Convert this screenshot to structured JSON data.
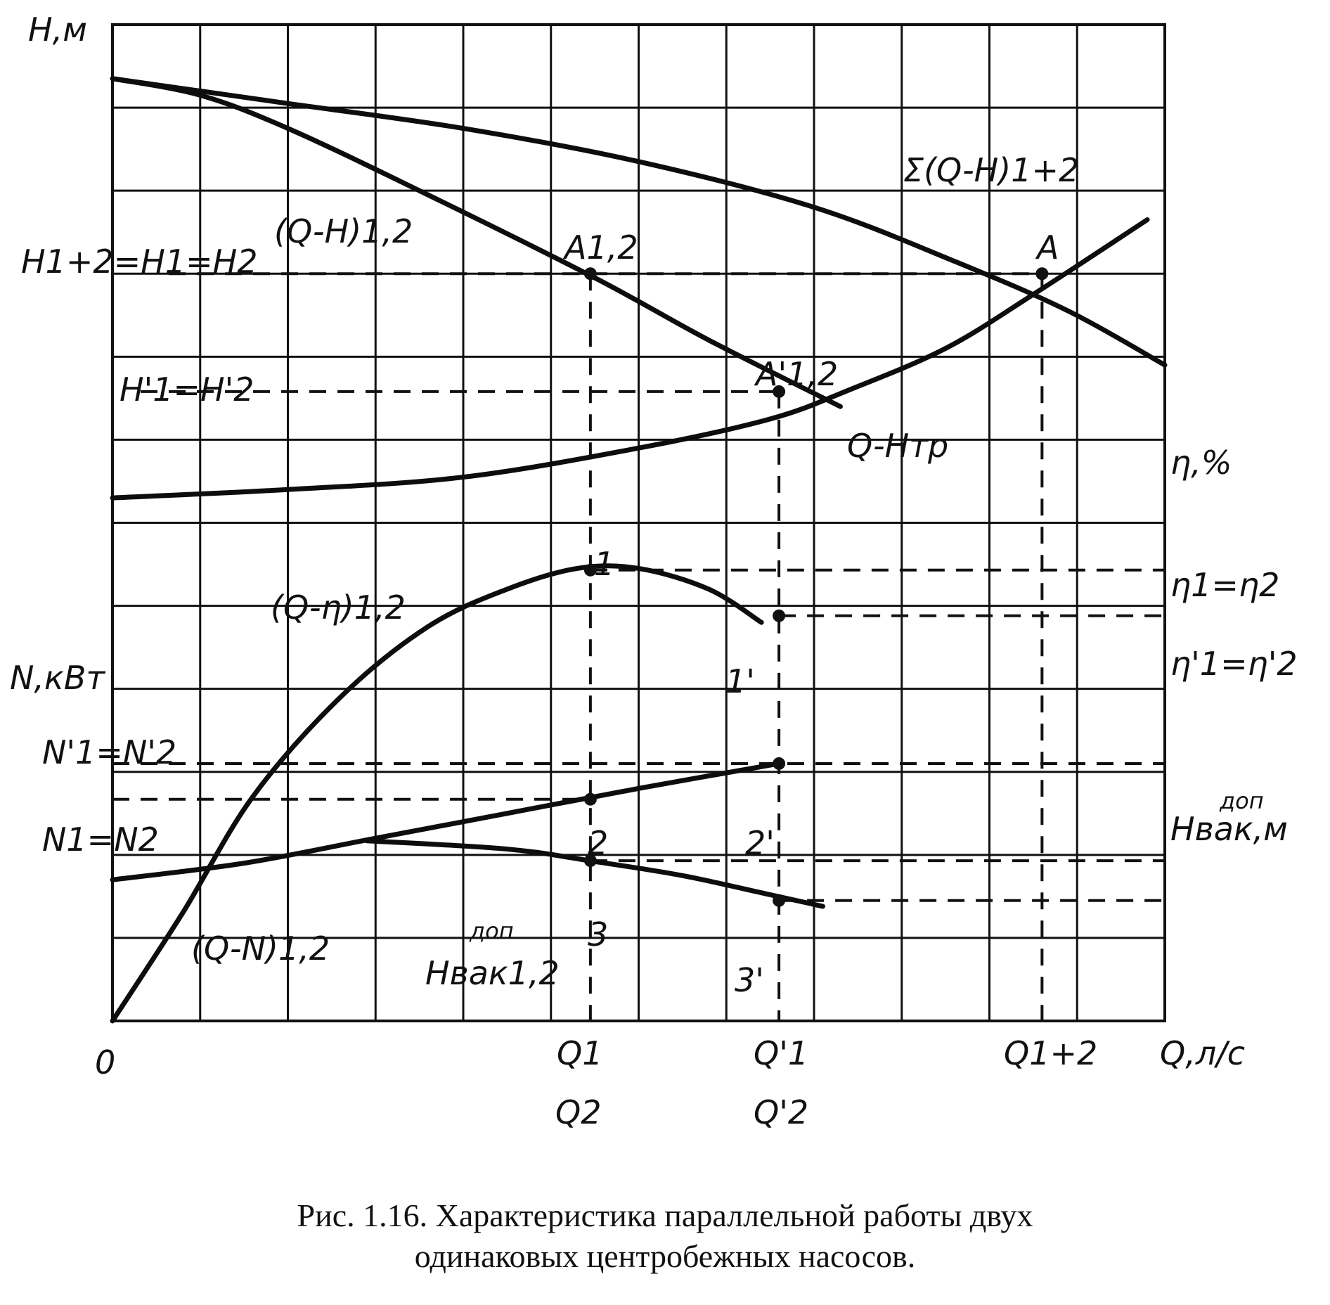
{
  "chart_data": {
    "type": "line",
    "title": "",
    "axes": {
      "x_label": "Q,л/с",
      "y_label_head": "H,м",
      "y_label_power": "N,кВт",
      "y_label_efficiency": "η,%",
      "y_label_vacuum": {
        "base": "Hвак,м",
        "superscript": "доп"
      }
    },
    "origin_label": "0",
    "x_ticks": {
      "q1": "Q1",
      "q2": "Q2",
      "q1p": "Q'1",
      "q2p": "Q'2",
      "q12": "Q1+2"
    },
    "y_ticks_left": {
      "h12": "H1+2=H1=H2",
      "hp": "H'1=H'2",
      "np": "N'1=N'2",
      "n": "N1=N2"
    },
    "y_ticks_right": {
      "eta": "η1=η2",
      "eta_p": "η'1=η'2"
    },
    "curve_labels": {
      "qh": "(Q-H)1,2",
      "sum_qh": "Σ(Q-H)1+2",
      "qh_tr": "Q-Hтр",
      "q_eta": "(Q-η)1,2",
      "q_n": "(Q-N)1,2",
      "hvak": {
        "superscript": "доп",
        "base": "Hвак1,2"
      }
    },
    "point_labels": {
      "a12": "A1,2",
      "a12p": "A'1,2",
      "a": "A",
      "p1": "1",
      "p1p": "1'",
      "p2": "2",
      "p2p": "2'",
      "p3": "3",
      "p3p": "3'"
    },
    "x_range": [
      0,
      12
    ],
    "y_range": [
      0,
      12
    ],
    "grid": true,
    "series": [
      {
        "name": "(Q-H)1,2",
        "x": [
          0,
          1,
          2,
          3.5,
          5.5,
          6.8,
          8.3
        ],
        "y": [
          11.35,
          11.15,
          10.75,
          10.0,
          8.95,
          8.2,
          7.4
        ]
      },
      {
        "name": "Σ(Q-H)1+2",
        "x": [
          0,
          1,
          2,
          4,
          6,
          8,
          9.6,
          10.9,
          12
        ],
        "y": [
          11.35,
          11.2,
          11.05,
          10.75,
          10.35,
          9.8,
          9.15,
          8.55,
          7.9
        ]
      },
      {
        "name": "Q-Hтр",
        "x": [
          0,
          2,
          4,
          6,
          7.5,
          8.4,
          9.5,
          10.5,
          11.8
        ],
        "y": [
          6.3,
          6.4,
          6.55,
          6.9,
          7.25,
          7.6,
          8.1,
          8.75,
          9.65
        ]
      },
      {
        "name": "(Q-η)1,2",
        "x": [
          0,
          0.8,
          1.6,
          2.6,
          3.6,
          4.5,
          5.3,
          6.0,
          6.8,
          7.4
        ],
        "y": [
          0,
          1.3,
          2.7,
          3.9,
          4.75,
          5.2,
          5.45,
          5.45,
          5.2,
          4.8
        ]
      },
      {
        "name": "(Q-N)1,2",
        "x": [
          0,
          1.5,
          3,
          4.5,
          6,
          7.6
        ],
        "y": [
          1.7,
          1.9,
          2.2,
          2.5,
          2.8,
          3.1
        ]
      },
      {
        "name": "Hвак1,2",
        "x": [
          2.9,
          4.5,
          5.5,
          6.5,
          7.5,
          8.1
        ],
        "y": [
          2.17,
          2.07,
          1.92,
          1.75,
          1.52,
          1.38
        ]
      }
    ],
    "operating_points": {
      "A1,2": {
        "x": 5.45,
        "y": 9.0
      },
      "A'1,2": {
        "x": 7.6,
        "y": 7.58
      },
      "A": {
        "x": 10.6,
        "y": 9.0
      },
      "1": {
        "x": 5.45,
        "y": 5.43
      },
      "1'": {
        "x": 7.6,
        "y": 4.88
      },
      "2": {
        "x": 5.45,
        "y": 2.67
      },
      "2'": {
        "x": 7.6,
        "y": 3.1
      },
      "3": {
        "x": 5.45,
        "y": 1.93
      },
      "3'": {
        "x": 7.6,
        "y": 1.45
      }
    }
  },
  "caption": {
    "line1": "Рис. 1.16. Характеристика параллельной работы двух",
    "line2": "одинаковых центробежных насосов."
  }
}
